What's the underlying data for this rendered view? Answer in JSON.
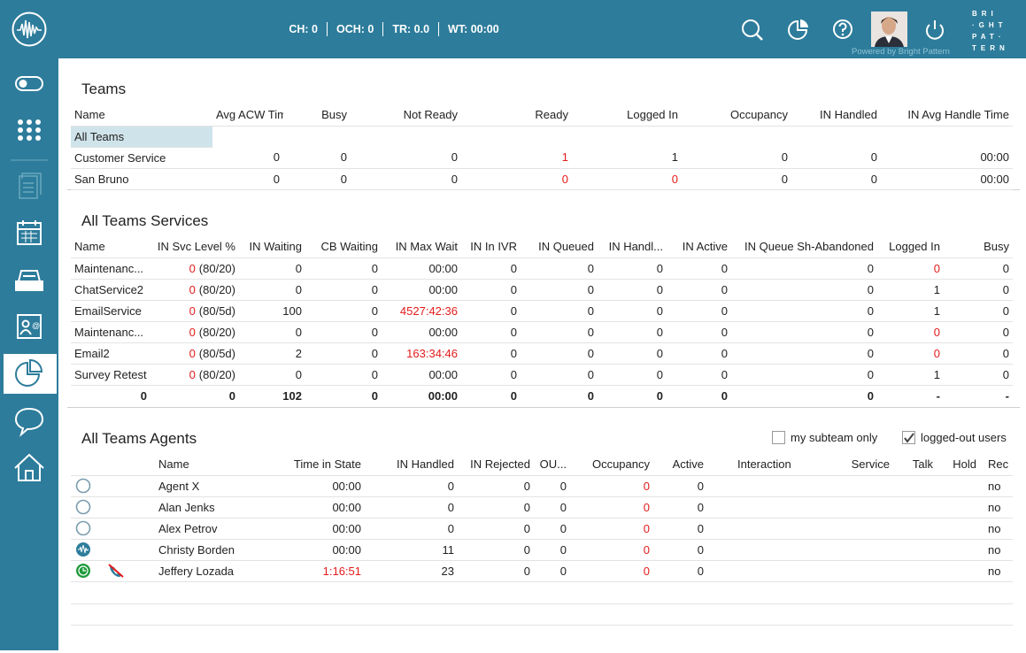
{
  "header": {
    "stats": [
      "CH: 0",
      "OCH: 0",
      "TR: 0.0",
      "WT: 00:00"
    ],
    "powered": "Powered by Bright Pattern",
    "logo": [
      "BRI",
      "·GHT",
      "PAT·",
      "TERN"
    ]
  },
  "alert_color": "#e31b1b",
  "teams": {
    "title": "Teams",
    "columns": [
      "Name",
      "Avg ACW Time",
      "Busy",
      "Not Ready",
      "Ready",
      "Logged In",
      "Occupancy",
      "IN Handled",
      "IN Avg Handle Time"
    ],
    "rows": [
      {
        "cells": [
          "All Teams"
        ],
        "highlight": true
      },
      {
        "cells": [
          "Customer Service",
          "0",
          "0",
          "0",
          "1",
          "1",
          "0",
          "0",
          "00:00"
        ],
        "alert": [
          4
        ]
      },
      {
        "cells": [
          "San Bruno",
          "0",
          "0",
          "0",
          "0",
          "0",
          "0",
          "0",
          "00:00"
        ],
        "alert": [
          4,
          5
        ]
      }
    ]
  },
  "services": {
    "title": "All Teams Services",
    "columns": [
      "Name",
      "IN Svc Level %",
      "IN Waiting",
      "CB Waiting",
      "IN Max Wait",
      "IN In IVR",
      "IN Queued",
      "IN Handl...",
      "IN Active",
      "IN Queue Sh-Abandoned",
      "Logged In",
      "Busy"
    ],
    "rows": [
      {
        "cells": [
          "Maintenanc...",
          [
            "0",
            "(80/20)"
          ],
          "0",
          "0",
          "00:00",
          "0",
          "0",
          "0",
          "0",
          "0",
          "0",
          "0"
        ],
        "alert": [
          1,
          10
        ]
      },
      {
        "cells": [
          "ChatService2",
          [
            "0",
            "(80/20)"
          ],
          "0",
          "0",
          "00:00",
          "0",
          "0",
          "0",
          "0",
          "0",
          "1",
          "0"
        ],
        "alert": [
          1
        ]
      },
      {
        "cells": [
          "EmailService",
          [
            "0",
            "(80/5d)"
          ],
          "100",
          "0",
          "4527:42:36",
          "0",
          "0",
          "0",
          "0",
          "0",
          "1",
          "0"
        ],
        "alert": [
          1,
          4
        ]
      },
      {
        "cells": [
          "Maintenanc...",
          [
            "0",
            "(80/20)"
          ],
          "0",
          "0",
          "00:00",
          "0",
          "0",
          "0",
          "0",
          "0",
          "0",
          "0"
        ],
        "alert": [
          1,
          10
        ]
      },
      {
        "cells": [
          "Email2",
          [
            "0",
            "(80/5d)"
          ],
          "2",
          "0",
          "163:34:46",
          "0",
          "0",
          "0",
          "0",
          "0",
          "0",
          "0"
        ],
        "alert": [
          1,
          4,
          10
        ]
      },
      {
        "cells": [
          "Survey Retest",
          [
            "0",
            "(80/20)"
          ],
          "0",
          "0",
          "00:00",
          "0",
          "0",
          "0",
          "0",
          "0",
          "1",
          "0"
        ],
        "alert": [
          1
        ]
      }
    ],
    "totals": [
      "0",
      "0",
      "102",
      "0",
      "00:00",
      "0",
      "0",
      "0",
      "0",
      "0",
      "-",
      "-"
    ]
  },
  "agents": {
    "title": "All Teams Agents",
    "options": [
      {
        "label": "my subteam only",
        "checked": false
      },
      {
        "label": "logged-out users",
        "checked": true
      }
    ],
    "columns": [
      "Name",
      "Time in State",
      "IN Handled",
      "IN Rejected",
      "OU...",
      "Occupancy",
      "Active",
      "Interaction",
      "Service",
      "Talk",
      "Hold",
      "Rec"
    ],
    "rows": [
      {
        "icons": [
          "offline"
        ],
        "cells": [
          "Agent X",
          "00:00",
          "0",
          "0",
          "0",
          "0",
          "0",
          null,
          null,
          null,
          null,
          "no"
        ],
        "alert": [
          5
        ]
      },
      {
        "icons": [
          "offline"
        ],
        "cells": [
          "Alan Jenks",
          "00:00",
          "0",
          "0",
          "0",
          "0",
          "0",
          null,
          null,
          null,
          null,
          "no"
        ],
        "alert": [
          5
        ]
      },
      {
        "icons": [
          "offline"
        ],
        "cells": [
          "Alex Petrov",
          "00:00",
          "0",
          "0",
          "0",
          "0",
          "0",
          null,
          null,
          null,
          null,
          "no"
        ],
        "alert": [
          5
        ]
      },
      {
        "icons": [
          "online"
        ],
        "cells": [
          "Christy Borden",
          "00:00",
          "11",
          "0",
          "0",
          "0",
          "0",
          null,
          null,
          null,
          null,
          "no"
        ],
        "alert": [
          5
        ]
      },
      {
        "icons": [
          "ready",
          "phone"
        ],
        "cells": [
          "Jeffery Lozada",
          "1:16:51",
          "23",
          "0",
          "0",
          "0",
          "0",
          null,
          null,
          null,
          null,
          "no"
        ],
        "alert": [
          1,
          5
        ]
      }
    ]
  }
}
